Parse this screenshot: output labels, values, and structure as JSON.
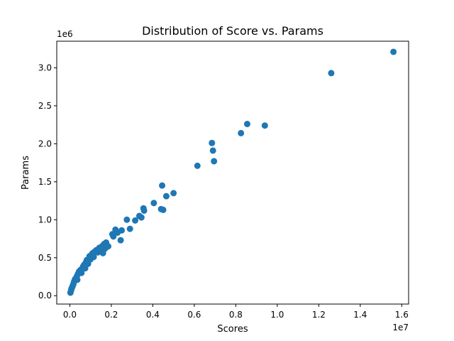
{
  "chart_data": {
    "type": "scatter",
    "title": "Distribution of Score vs. Params",
    "xlabel": "Scores",
    "ylabel": "Params",
    "x_offset_label": "1e7",
    "y_offset_label": "1e6",
    "x_multiplier": 10000000,
    "y_multiplier": 1000000,
    "xlim": [
      -630000,
      16330000
    ],
    "ylim": [
      -110000,
      3350000
    ],
    "xticks": [
      0,
      2000000,
      4000000,
      6000000,
      8000000,
      10000000,
      12000000,
      14000000,
      16000000
    ],
    "xtick_labels": [
      "0.0",
      "0.2",
      "0.4",
      "0.6",
      "0.8",
      "1.0",
      "1.2",
      "1.4",
      "1.6"
    ],
    "yticks": [
      0,
      500000,
      1000000,
      1500000,
      2000000,
      2500000,
      3000000
    ],
    "ytick_labels": [
      "0.0",
      "0.5",
      "1.0",
      "1.5",
      "2.0",
      "2.5",
      "3.0"
    ],
    "grid": false,
    "marker_color": "#1f77b4",
    "x": [
      30000,
      60000,
      80000,
      110000,
      140000,
      170000,
      200000,
      230000,
      260000,
      300000,
      330000,
      360000,
      380000,
      420000,
      450000,
      480000,
      520000,
      560000,
      600000,
      650000,
      700000,
      740000,
      780000,
      820000,
      880000,
      900000,
      950000,
      1000000,
      1050000,
      1100000,
      1150000,
      1200000,
      1280000,
      1350000,
      1420000,
      1480000,
      1550000,
      1600000,
      1650000,
      1700000,
      1750000,
      1800000,
      1850000,
      2050000,
      2100000,
      2200000,
      2300000,
      2500000,
      2450000,
      2750000,
      2900000,
      3150000,
      3350000,
      3450000,
      3550000,
      3580000,
      4050000,
      4400000,
      4450000,
      4500000,
      4650000,
      5000000,
      6150000,
      6850000,
      6900000,
      6950000,
      8250000,
      8550000,
      9400000,
      12600000,
      15600000
    ],
    "y": [
      40000,
      70000,
      90000,
      110000,
      130000,
      150000,
      180000,
      200000,
      220000,
      230000,
      250000,
      210000,
      280000,
      300000,
      320000,
      310000,
      340000,
      300000,
      360000,
      390000,
      410000,
      360000,
      440000,
      470000,
      420000,
      460000,
      520000,
      480000,
      540000,
      560000,
      510000,
      580000,
      600000,
      570000,
      630000,
      610000,
      650000,
      560000,
      680000,
      620000,
      700000,
      660000,
      650000,
      810000,
      780000,
      870000,
      830000,
      860000,
      730000,
      1000000,
      880000,
      990000,
      1050000,
      1030000,
      1150000,
      1120000,
      1220000,
      1140000,
      1450000,
      1130000,
      1310000,
      1350000,
      1710000,
      2010000,
      1910000,
      1770000,
      2140000,
      2260000,
      2240000,
      2930000,
      3210000
    ]
  }
}
